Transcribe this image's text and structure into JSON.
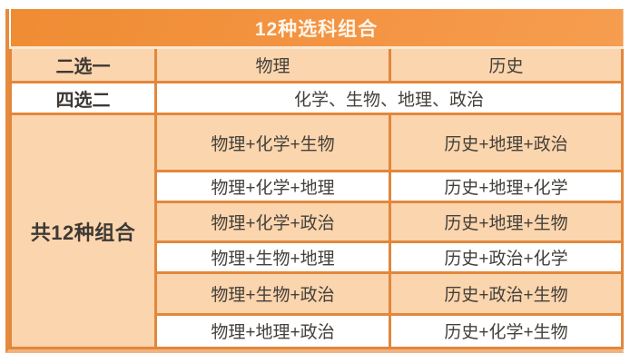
{
  "table": {
    "title": "12种选科组合",
    "choose_one_row": {
      "label": "二选一",
      "physics_header": "物理",
      "history_header": "历史"
    },
    "choose_two_row": {
      "label": "四选二",
      "subjects": "化学、生物、地理、政治"
    },
    "total_label": "共12种组合",
    "combination_rows": [
      {
        "physics_combo": "物理+化学+生物",
        "history_combo": "历史+地理+政治"
      },
      {
        "physics_combo": "物理+化学+地理",
        "history_combo": "历史+地理+化学"
      },
      {
        "physics_combo": "物理+化学+政治",
        "history_combo": "历史+地理+生物"
      },
      {
        "physics_combo": "物理+生物+地理",
        "history_combo": "历史+政治+化学"
      },
      {
        "physics_combo": "物理+生物+政治",
        "history_combo": "历史+政治+生物"
      },
      {
        "physics_combo": "物理+地理+政治",
        "history_combo": "历史+化学+生物"
      }
    ],
    "colors": {
      "header_orange": "#F49443",
      "row_peach": "#FBD5AD",
      "row_white": "#FFFFFF",
      "border_orange": "#E2873B",
      "divider_dark": "#C4763C",
      "text_dark": "#44403B",
      "title_text": "#FDF6EA"
    }
  }
}
